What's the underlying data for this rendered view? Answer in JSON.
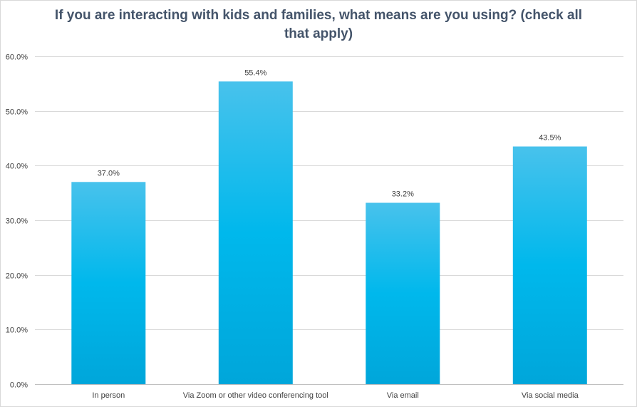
{
  "chart_data": {
    "type": "bar",
    "title": "If you are interacting with kids and families, what means are you using? (check all that apply)",
    "categories": [
      "In person",
      "Via Zoom or other video conferencing tool",
      "Via email",
      "Via social media"
    ],
    "values": [
      37.0,
      55.4,
      33.2,
      43.5
    ],
    "value_labels": [
      "37.0%",
      "55.4%",
      "33.2%",
      "43.5%"
    ],
    "ylim": [
      0,
      60
    ],
    "yticks": [
      0,
      10,
      20,
      30,
      40,
      50,
      60
    ],
    "ytick_labels": [
      "0.0%",
      "10.0%",
      "20.0%",
      "30.0%",
      "40.0%",
      "50.0%",
      "60.0%"
    ],
    "grid": true,
    "legend": "none",
    "colors": {
      "bar_top": "#48c2ec",
      "bar_mid": "#00b8ec",
      "bar_bottom": "#00a6da",
      "title": "#44546a"
    }
  }
}
